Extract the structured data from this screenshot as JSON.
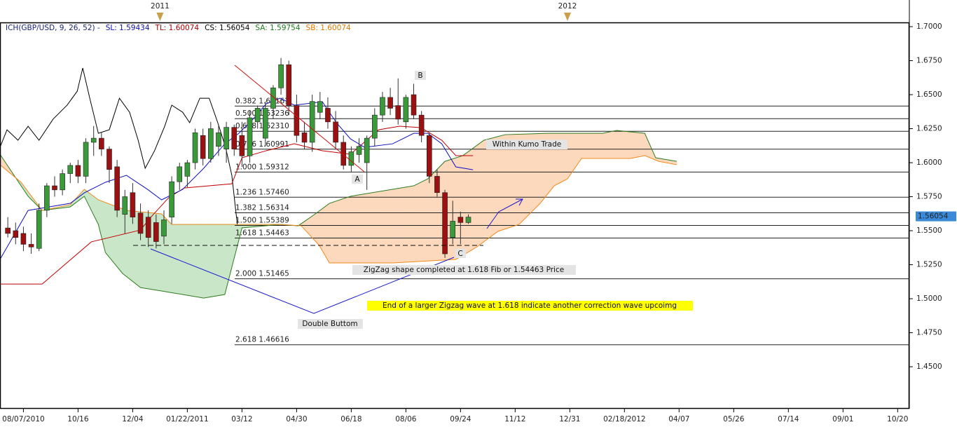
{
  "chart_data": {
    "type": "candlestick",
    "header": [
      {
        "text": "ICH(GBP/USD, 9, 26, 52) -",
        "color": "#1a237e"
      },
      {
        "text": "SL: 1.59434",
        "color": "#1010b0"
      },
      {
        "text": "TL: 1.60074",
        "color": "#b00000"
      },
      {
        "text": "CS: 1.56054",
        "color": "#000000"
      },
      {
        "text": "SA: 1.59754",
        "color": "#1e7a1e"
      },
      {
        "text": "SB: 1.60074",
        "color": "#e07b00"
      }
    ],
    "xlim": [
      -3,
      113.5
    ],
    "ylim": [
      1.4191,
      1.7031
    ],
    "xticks": [
      {
        "value": 0,
        "label": "08/07/2010"
      },
      {
        "value": 7,
        "label": "10/16"
      },
      {
        "value": 14,
        "label": "12/04"
      },
      {
        "value": 21,
        "label": "01/22/2011"
      },
      {
        "value": 28,
        "label": "03/12"
      },
      {
        "value": 35,
        "label": "04/30"
      },
      {
        "value": 42,
        "label": "06/18"
      },
      {
        "value": 49,
        "label": "08/06"
      },
      {
        "value": 56,
        "label": "09/24"
      },
      {
        "value": 63,
        "label": "11/12"
      },
      {
        "value": 70,
        "label": "12/31"
      },
      {
        "value": 77,
        "label": "02/18/2012"
      },
      {
        "value": 84,
        "label": "04/07"
      },
      {
        "value": 91,
        "label": "05/26"
      },
      {
        "value": 98,
        "label": "07/14"
      },
      {
        "value": 105,
        "label": "09/01"
      },
      {
        "value": 112,
        "label": "10/20"
      }
    ],
    "top_xticks": [
      {
        "value": 17.5,
        "label": "2011"
      },
      {
        "value": 69.7,
        "label": "2012"
      }
    ],
    "yticks": [
      {
        "value": 1.45,
        "label": "1.4500"
      },
      {
        "value": 1.475,
        "label": "1.4750"
      },
      {
        "value": 1.5,
        "label": "1.5000"
      },
      {
        "value": 1.525,
        "label": "1.5250"
      },
      {
        "value": 1.55,
        "label": "1.5500"
      },
      {
        "value": 1.575,
        "label": "1.5750"
      },
      {
        "value": 1.6,
        "label": "1.6000"
      },
      {
        "value": 1.625,
        "label": "1.6250"
      },
      {
        "value": 1.65,
        "label": "1.6500"
      },
      {
        "value": 1.675,
        "label": "1.6750"
      },
      {
        "value": 1.7,
        "label": "1.7000"
      }
    ],
    "up_color": "#3a9a3a",
    "down_color": "#9b1111",
    "x": [
      -2,
      -1,
      0,
      1,
      2,
      3,
      4,
      5,
      6,
      7,
      8,
      9,
      10,
      11,
      12,
      13,
      14,
      15,
      16,
      17,
      18,
      19,
      20,
      21,
      22,
      23,
      24,
      25,
      26,
      27,
      28,
      29,
      30,
      31,
      32,
      33,
      34,
      35,
      36,
      37,
      38,
      39,
      40,
      41,
      42,
      43,
      44,
      45,
      46,
      47,
      48,
      49,
      50,
      51,
      52,
      53,
      54,
      55,
      56,
      57
    ],
    "open": [
      1.552,
      1.55,
      1.548,
      1.54,
      1.537,
      1.565,
      1.583,
      1.58,
      1.592,
      1.598,
      1.59,
      1.615,
      1.618,
      1.61,
      1.597,
      1.562,
      1.578,
      1.563,
      1.56,
      1.556,
      1.546,
      1.56,
      1.586,
      1.59,
      1.6,
      1.62,
      1.603,
      1.612,
      1.61,
      1.626,
      1.62,
      1.605,
      1.63,
      1.618,
      1.64,
      1.655,
      1.672,
      1.642,
      1.622,
      1.615,
      1.637,
      1.64,
      1.63,
      1.615,
      1.598,
      1.606,
      1.6,
      1.618,
      1.635,
      1.648,
      1.642,
      1.63,
      1.65,
      1.635,
      1.62,
      1.59,
      1.578,
      1.545,
      1.56,
      1.556
    ],
    "high": [
      1.56,
      1.556,
      1.553,
      1.548,
      1.57,
      1.585,
      1.59,
      1.595,
      1.6,
      1.602,
      1.618,
      1.627,
      1.622,
      1.612,
      1.602,
      1.58,
      1.585,
      1.57,
      1.565,
      1.562,
      1.565,
      1.59,
      1.6,
      1.602,
      1.625,
      1.625,
      1.63,
      1.628,
      1.63,
      1.628,
      1.63,
      1.638,
      1.642,
      1.645,
      1.657,
      1.677,
      1.675,
      1.65,
      1.63,
      1.65,
      1.652,
      1.648,
      1.638,
      1.62,
      1.612,
      1.618,
      1.62,
      1.64,
      1.652,
      1.655,
      1.662,
      1.65,
      1.658,
      1.638,
      1.622,
      1.595,
      1.58,
      1.572,
      1.564,
      1.562
    ],
    "low": [
      1.545,
      1.54,
      1.535,
      1.533,
      1.535,
      1.56,
      1.575,
      1.576,
      1.585,
      1.585,
      1.585,
      1.605,
      1.605,
      1.585,
      1.56,
      1.548,
      1.555,
      1.543,
      1.538,
      1.537,
      1.54,
      1.555,
      1.58,
      1.582,
      1.595,
      1.598,
      1.6,
      1.605,
      1.6,
      1.605,
      1.597,
      1.6,
      1.625,
      1.612,
      1.632,
      1.65,
      1.635,
      1.615,
      1.61,
      1.608,
      1.632,
      1.625,
      1.61,
      1.595,
      1.593,
      1.6,
      1.58,
      1.612,
      1.63,
      1.635,
      1.628,
      1.625,
      1.632,
      1.615,
      1.585,
      1.575,
      1.53,
      1.54,
      1.54,
      1.555
    ],
    "close": [
      1.548,
      1.545,
      1.54,
      1.538,
      1.565,
      1.583,
      1.58,
      1.592,
      1.598,
      1.59,
      1.615,
      1.618,
      1.61,
      1.595,
      1.565,
      1.575,
      1.56,
      1.548,
      1.545,
      1.542,
      1.558,
      1.586,
      1.597,
      1.6,
      1.622,
      1.603,
      1.625,
      1.622,
      1.626,
      1.61,
      1.605,
      1.633,
      1.64,
      1.64,
      1.655,
      1.672,
      1.642,
      1.62,
      1.615,
      1.645,
      1.645,
      1.63,
      1.615,
      1.598,
      1.608,
      1.612,
      1.618,
      1.635,
      1.648,
      1.64,
      1.632,
      1.648,
      1.635,
      1.62,
      1.59,
      1.578,
      1.533,
      1.557,
      1.556,
      1.56
    ],
    "lines": [
      {
        "color": "#000000",
        "x": [
          -3,
          -2.1,
          -0.7,
          0.6,
          2,
          3.8,
          5.6,
          6.9,
          7.6,
          8.5,
          9.6,
          11,
          12.3,
          13.6,
          14.7,
          15.6,
          16.8,
          18.1,
          19,
          20.4,
          21.3,
          22.6,
          23.8,
          24.9,
          25.9,
          26.7,
          27.4
        ],
        "values": [
          1.6113,
          1.6242,
          1.6165,
          1.6268,
          1.6165,
          1.632,
          1.6423,
          1.6526,
          1.6696,
          1.6474,
          1.6216,
          1.6242,
          1.6474,
          1.6371,
          1.6165,
          1.5959,
          1.6088,
          1.6268,
          1.6423,
          1.6371,
          1.6294,
          1.6474,
          1.6474,
          1.6294,
          1.6113,
          1.5907,
          1.5546
        ]
      },
      {
        "color": "#c00000",
        "x": [
          -3,
          2.4,
          8.7,
          15,
          16.3,
          18.6,
          20.6,
          26.7,
          28,
          31.1,
          34.7,
          38.3,
          41.9,
          45.5,
          48.2,
          50.9,
          53.6,
          55.4,
          57.6
        ],
        "values": [
          1.5108,
          1.5108,
          1.5418,
          1.5505,
          1.5598,
          1.5742,
          1.5814,
          1.5845,
          1.6036,
          1.6088,
          1.6139,
          1.6088,
          1.6062,
          1.6242,
          1.6268,
          1.6258,
          1.6165,
          1.6052,
          1.6052
        ]
      },
      {
        "color": "#1010c0",
        "x": [
          -3,
          0.6,
          6,
          7.8,
          10.5,
          13.2,
          15.9,
          17.7,
          20.4,
          23.1,
          25.8,
          27.6,
          29.4,
          31.1,
          32.9,
          34.7,
          38.3,
          40.1,
          41.9,
          43.7,
          47.3,
          50,
          51.8,
          53.6,
          55.4,
          57.6
        ],
        "values": [
          1.5289,
          1.5649,
          1.5701,
          1.5778,
          1.5856,
          1.5907,
          1.5804,
          1.5727,
          1.5804,
          1.5959,
          1.6139,
          1.6216,
          1.632,
          1.6433,
          1.6474,
          1.6423,
          1.6448,
          1.6294,
          1.6175,
          1.6113,
          1.6139,
          1.6216,
          1.6216,
          1.6139,
          1.5969,
          1.5948
        ]
      }
    ],
    "senkou_a": {
      "color": "#2e7d1e",
      "x": [
        -3,
        -1.2,
        0.6,
        2.4,
        6,
        7.8,
        9.6,
        10.5,
        12.7,
        15,
        17.7,
        20.4,
        23.1,
        25.8,
        28,
        32.9,
        35.2,
        37.4,
        39.2,
        41.9,
        47.3,
        50,
        51.8,
        54,
        56.3,
        59,
        61.7,
        67.1,
        74.2,
        76,
        79.6,
        81,
        83.7
      ],
      "values": [
        1.6062,
        1.5907,
        1.5753,
        1.5649,
        1.5675,
        1.5753,
        1.5546,
        1.534,
        1.5186,
        1.5082,
        1.5057,
        1.5031,
        1.5005,
        1.5031,
        1.5521,
        1.5546,
        1.5536,
        1.5624,
        1.5701,
        1.5753,
        1.5804,
        1.583,
        1.5881,
        1.601,
        1.6052,
        1.6165,
        1.6206,
        1.6216,
        1.6216,
        1.6237,
        1.6216,
        1.6036,
        1.601
      ]
    },
    "senkou_b": {
      "color": "#f08a1c",
      "x": [
        -3,
        -0.3,
        2.4,
        6,
        7.8,
        9.6,
        13.2,
        17.7,
        19,
        32.9,
        35.6,
        37.9,
        39.2,
        47.3,
        55.4,
        58.1,
        60.8,
        63.5,
        66.2,
        68,
        69.7,
        71.5,
        77.8,
        79.6,
        81.4,
        83.7
      ],
      "values": [
        1.5985,
        1.5856,
        1.5649,
        1.5691,
        1.5804,
        1.5727,
        1.5649,
        1.5624,
        1.5546,
        1.5546,
        1.5536,
        1.5392,
        1.5263,
        1.5263,
        1.5289,
        1.5381,
        1.5495,
        1.5546,
        1.5701,
        1.583,
        1.5881,
        1.6031,
        1.6031,
        1.6052,
        1.601,
        1.5985
      ]
    },
    "cloud_up_color": "#fcd9bd",
    "cloud_down_color": "#c9e6c9",
    "last_price": 1.56054,
    "fib_levels": [
      {
        "label": "0.382 1.64161",
        "value": 1.64161
      },
      {
        "label": "0.500 1.63236",
        "value": 1.63236
      },
      {
        "label": "0.618 1.62310",
        "value": 1.6231
      },
      {
        "label": "0.786 1.60991",
        "value": 1.60991
      },
      {
        "label": "1.000 1.59312",
        "value": 1.59312
      },
      {
        "label": "1.236 1.57460",
        "value": 1.5746
      },
      {
        "label": "1.382 1.56314",
        "value": 1.56314
      },
      {
        "label": "1.500 1.55389",
        "value": 1.55389
      },
      {
        "label": "1.618 1.54463",
        "value": 1.54463
      },
      {
        "label": "2.000 1.51465",
        "value": 1.51465
      },
      {
        "label": "2.618 1.46616",
        "value": 1.46616
      }
    ],
    "annotations": {
      "a": "A",
      "b": "B",
      "c": "C",
      "kumo": "Within Kumo Trade",
      "zigzag": "ZigZag shape completed at 1.618 Fib or 1.54463 Price",
      "larger": "End of a larger Zigzag wave at 1.618 indicate another correction wave upcoimg",
      "double": "Double Buttom"
    }
  }
}
